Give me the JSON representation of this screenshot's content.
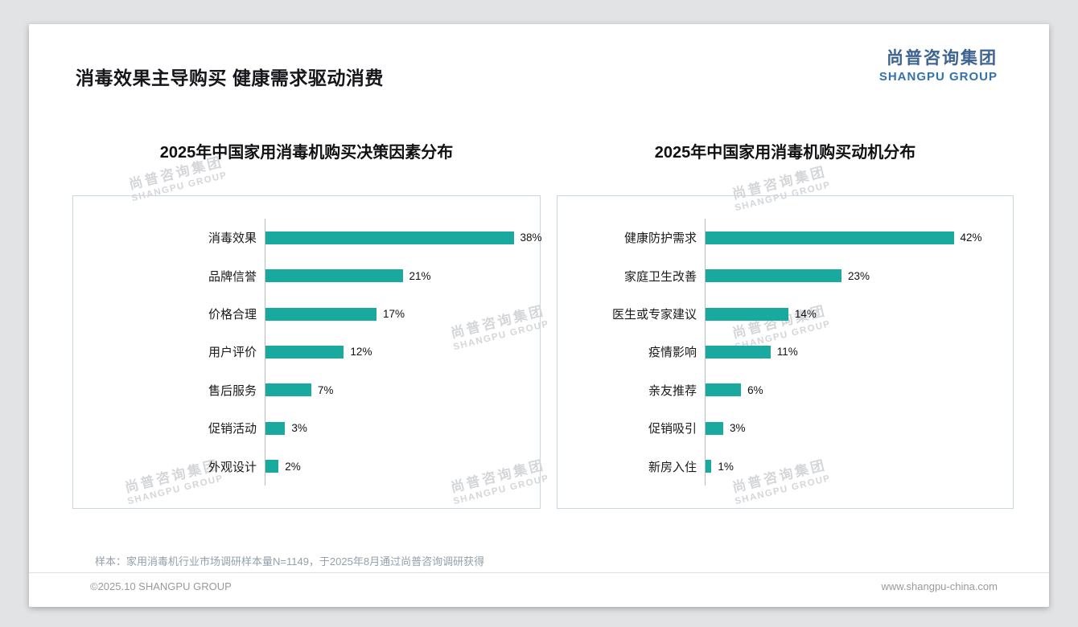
{
  "page": {
    "title": "消毒效果主导购买 健康需求驱动消费",
    "logo": {
      "cn": "尚普咨询集团",
      "en": "SHANGPU GROUP"
    },
    "watermark": {
      "line1": "尚普咨询集团",
      "line2": "SHANGPU GROUP"
    },
    "sample_note": "样本：家用消毒机行业市场调研样本量N=1149，于2025年8月通过尚普咨询调研获得",
    "footer": {
      "left": "©2025.10 SHANGPU GROUP",
      "right": "www.shangpu-china.com"
    }
  },
  "colors": {
    "bar": "#1aa99e",
    "logo_blue_cn": "#3d6390",
    "logo_blue_en": "#3472ad",
    "panel_border": "#c7d6e0",
    "watermark_gray": "#d4d6d9"
  },
  "chart_data": [
    {
      "type": "bar",
      "orientation": "horizontal",
      "title": "2025年中国家用消毒机购买决策因素分布",
      "categories": [
        "消毒效果",
        "品牌信誉",
        "价格合理",
        "用户评价",
        "售后服务",
        "促销活动",
        "外观设计"
      ],
      "values": [
        38,
        21,
        17,
        12,
        7,
        3,
        2
      ],
      "value_labels": [
        "38%",
        "21%",
        "17%",
        "12%",
        "7%",
        "3%",
        "2%"
      ],
      "xlim": [
        0,
        42
      ],
      "grid": false,
      "legend": "none"
    },
    {
      "type": "bar",
      "orientation": "horizontal",
      "title": "2025年中国家用消毒机购买动机分布",
      "categories": [
        "健康防护需求",
        "家庭卫生改善",
        "医生或专家建议",
        "疫情影响",
        "亲友推荐",
        "促销吸引",
        "新房入住"
      ],
      "values": [
        42,
        23,
        14,
        11,
        6,
        3,
        1
      ],
      "value_labels": [
        "42%",
        "23%",
        "14%",
        "11%",
        "6%",
        "3%",
        "1%"
      ],
      "xlim": [
        0,
        52
      ],
      "grid": false,
      "legend": "none"
    }
  ]
}
